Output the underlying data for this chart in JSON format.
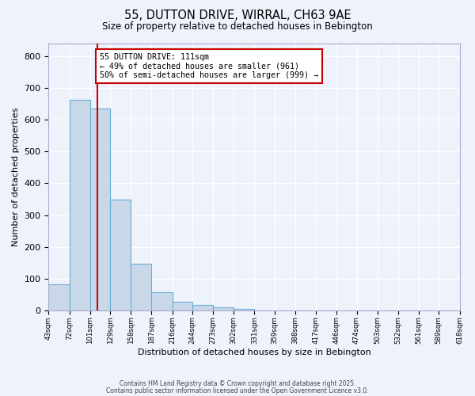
{
  "title": "55, DUTTON DRIVE, WIRRAL, CH63 9AE",
  "subtitle": "Size of property relative to detached houses in Bebington",
  "xlabel": "Distribution of detached houses by size in Bebington",
  "ylabel": "Number of detached properties",
  "bar_values": [
    83,
    663,
    635,
    350,
    148,
    58,
    28,
    18,
    10,
    5,
    0,
    0,
    0,
    0,
    0,
    0,
    0,
    0,
    0,
    0
  ],
  "bin_edges": [
    43,
    72,
    101,
    129,
    158,
    187,
    216,
    244,
    273,
    302,
    331,
    359,
    388,
    417,
    446,
    474,
    503,
    532,
    561,
    589,
    618
  ],
  "tick_labels": [
    "43sqm",
    "72sqm",
    "101sqm",
    "129sqm",
    "158sqm",
    "187sqm",
    "216sqm",
    "244sqm",
    "273sqm",
    "302sqm",
    "331sqm",
    "359sqm",
    "388sqm",
    "417sqm",
    "446sqm",
    "474sqm",
    "503sqm",
    "532sqm",
    "561sqm",
    "589sqm",
    "618sqm"
  ],
  "bar_color": "#c8d8e8",
  "bar_edge_color": "#6baed6",
  "vline_x": 111,
  "vline_color": "#cc0000",
  "annotation_line1": "55 DUTTON DRIVE: 111sqm",
  "annotation_line2": "← 49% of detached houses are smaller (961)",
  "annotation_line3": "50% of semi-detached houses are larger (999) →",
  "annotation_box_color": "#ffffff",
  "annotation_box_edge": "#cc0000",
  "ylim": [
    0,
    840
  ],
  "background_color": "#eef2fb",
  "grid_color": "#ffffff",
  "footer1": "Contains HM Land Registry data © Crown copyright and database right 2025.",
  "footer2": "Contains public sector information licensed under the Open Government Licence v3.0."
}
